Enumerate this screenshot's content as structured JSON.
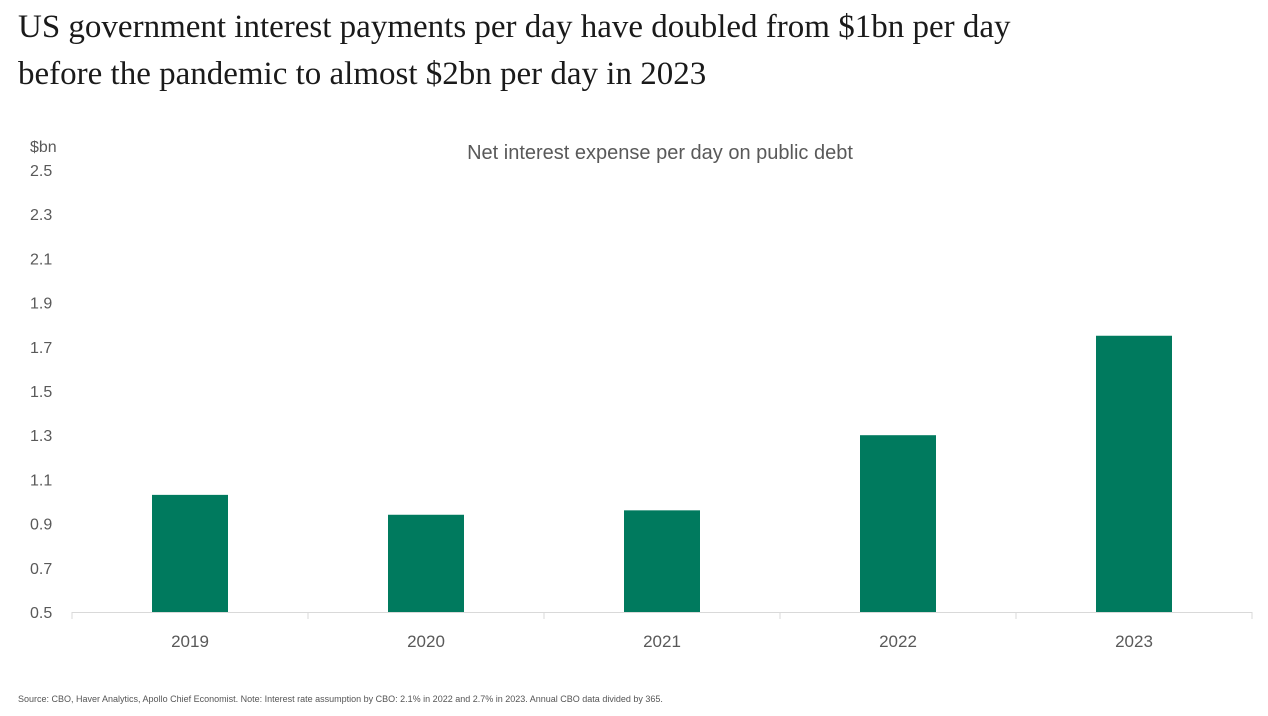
{
  "headline": {
    "line1": "US government interest payments per day have doubled from $1bn per day",
    "line2": "before the pandemic to almost $2bn per day in 2023"
  },
  "source_note": "Source: CBO, Haver Analytics, Apollo Chief Economist. Note: Interest rate assumption by CBO: 2.1% in 2022 and 2.7% in 2023. Annual CBO data divided by 365.",
  "colors": {
    "bar": "#007A5E",
    "axis_text": "#595959",
    "axis_line": "#d9d9d9"
  },
  "chart_data": {
    "type": "bar",
    "title": "Net interest expense per day on public debt",
    "ylabel": "$bn",
    "xlabel": "",
    "categories": [
      "2019",
      "2020",
      "2021",
      "2022",
      "2023"
    ],
    "values": [
      1.03,
      0.94,
      0.96,
      1.3,
      1.75
    ],
    "ylim": [
      0.5,
      2.5
    ],
    "yticks": [
      "0.5",
      "0.7",
      "0.9",
      "1.1",
      "1.3",
      "1.5",
      "1.7",
      "1.9",
      "2.1",
      "2.3",
      "2.5"
    ],
    "grid": false,
    "legend": "none"
  }
}
